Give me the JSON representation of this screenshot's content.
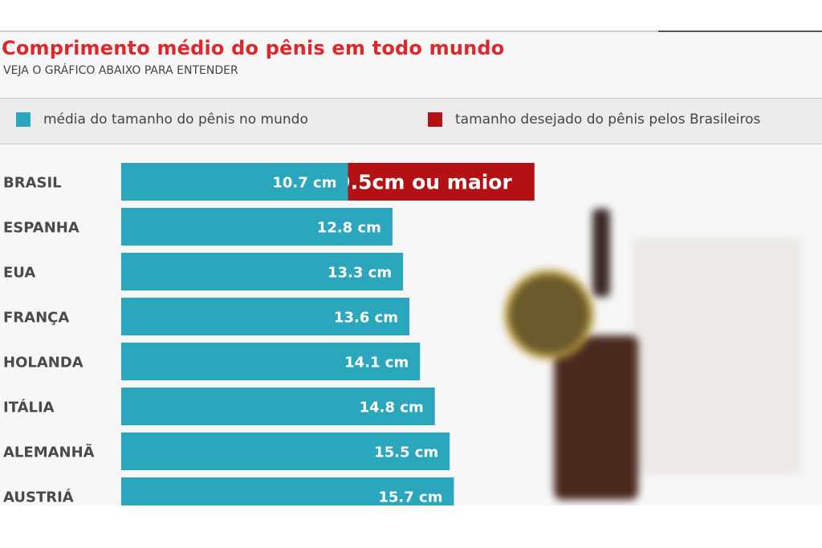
{
  "title": "Comprimento médio do pênis em todo mundo",
  "subtitle": "VEJA O GRÁFICO ABAIXO PARA ENTENDER",
  "colors": {
    "teal": "#2aa6bd",
    "red": "#b31114",
    "title_red": "#e0262b"
  },
  "legend": [
    {
      "label": "média do tamanho do pênis no mundo",
      "color": "#2aa6bd"
    },
    {
      "label": "tamanho desejado do pênis pelos Brasileiros",
      "color": "#b31114"
    }
  ],
  "chart_data": {
    "type": "bar",
    "orientation": "horizontal",
    "categories": [
      "BRASIL",
      "ESPANHA",
      "EUA",
      "FRANÇA",
      "HOLANDA",
      "ITÁLIA",
      "ALEMANHÃ",
      "AUSTRIÁ"
    ],
    "values": [
      10.7,
      12.8,
      13.3,
      13.6,
      14.1,
      14.8,
      15.5,
      15.7
    ],
    "value_labels": [
      "10.7 cm",
      "12.8 cm",
      "13.3 cm",
      "13.6 cm",
      "14.1 cm",
      "14.8 cm",
      "15.5 cm",
      "15.7 cm"
    ],
    "desired": {
      "category": "BRASIL",
      "value": 19.5,
      "label": "19.5cm ou maior"
    }
  }
}
